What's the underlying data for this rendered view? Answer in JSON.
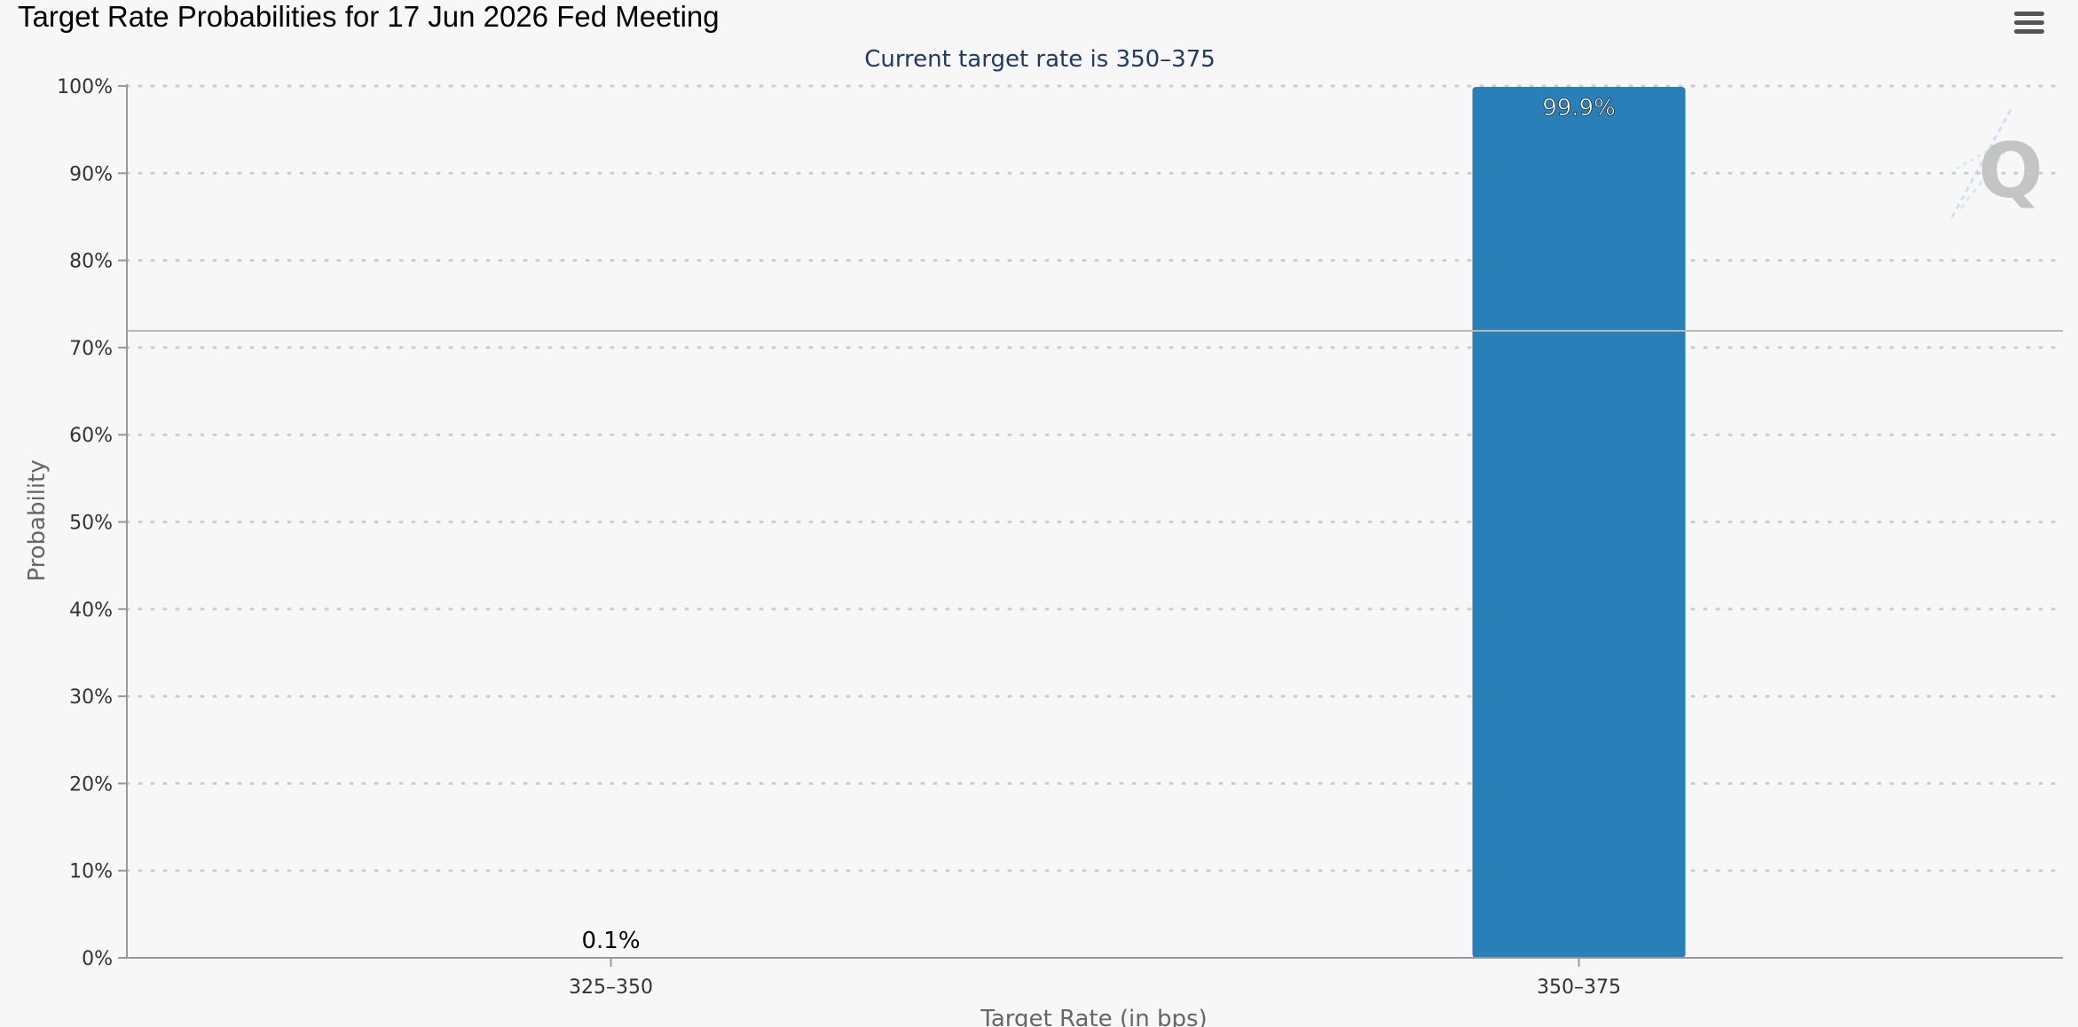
{
  "page": {
    "title": "Target Rate Probabilities for 17 Jun 2026 Fed Meeting"
  },
  "menu": {
    "icon": "hamburger-menu-icon"
  },
  "watermark": {
    "icon": "q-logo-icon",
    "letter": "Q"
  },
  "colors": {
    "bar": "#2980b9",
    "background": "#f7f7f7",
    "subtitle": "#1f3a64",
    "axis_text": "#333333",
    "gridline": "#cccccc"
  },
  "chart_data": {
    "type": "bar",
    "title": "Target Rate Probabilities for 17 Jun 2026 Fed Meeting",
    "subtitle": "Current target rate is 350–375",
    "xlabel": "Target Rate (in bps)",
    "ylabel": "Probability",
    "categories": [
      "325–350",
      "350–375"
    ],
    "values": [
      0.1,
      99.9
    ],
    "data_labels": [
      "0.1%",
      "99.9%"
    ],
    "ylim": [
      0,
      100
    ],
    "yticks": [
      0,
      10,
      20,
      30,
      40,
      50,
      60,
      70,
      80,
      90,
      100
    ],
    "ytick_labels": [
      "0%",
      "10%",
      "20%",
      "30%",
      "40%",
      "50%",
      "60%",
      "70%",
      "80%",
      "90%",
      "100%"
    ],
    "grid": "horizontal-dotted",
    "legend": "none"
  }
}
